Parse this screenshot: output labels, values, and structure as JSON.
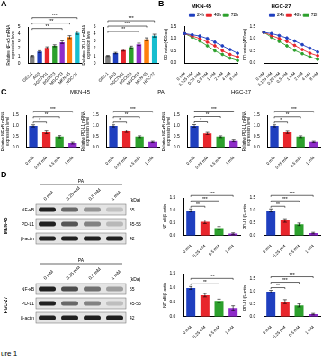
{
  "chart_data": [
    {
      "type": "bar",
      "y_label": "Relative NF-κB mRNA expression level",
      "categories": [
        "GES-1",
        "AGS",
        "SGC7901",
        "BGC823",
        "MGC803",
        "MKN-45",
        "HGC-27"
      ],
      "values": [
        1,
        1.6,
        2.1,
        2.4,
        2.9,
        3.6,
        4.2
      ],
      "errors": [
        0.08,
        0.12,
        0.15,
        0.14,
        0.18,
        0.2,
        0.22
      ],
      "colors": [
        "#7f7f7f",
        "#1f3fbf",
        "#e8262c",
        "#2ca02c",
        "#8e2bc9",
        "#ff7f0e",
        "#17becf"
      ],
      "ylim": [
        0,
        5
      ],
      "yticks": [
        0,
        1,
        2,
        3,
        4,
        5
      ],
      "grid": false,
      "significance": [
        {
          "pair": [
            0,
            4
          ],
          "label": "**"
        },
        {
          "pair": [
            0,
            5
          ],
          "label": "***"
        },
        {
          "pair": [
            0,
            6
          ],
          "label": "***"
        }
      ]
    },
    {
      "type": "bar",
      "y_label": "Relative PD-L1 mRNA expression level",
      "categories": [
        "GES-1",
        "AGS",
        "SGC7901",
        "BGC823",
        "MGC803",
        "MKN-45",
        "HGC-27"
      ],
      "values": [
        1,
        1.4,
        1.8,
        2.2,
        2.6,
        3.3,
        3.8
      ],
      "errors": [
        0.07,
        0.1,
        0.13,
        0.15,
        0.16,
        0.2,
        0.2
      ],
      "colors": [
        "#7f7f7f",
        "#1f3fbf",
        "#e8262c",
        "#2ca02c",
        "#8e2bc9",
        "#ff7f0e",
        "#17becf"
      ],
      "ylim": [
        0,
        5
      ],
      "yticks": [
        0,
        1,
        2,
        3,
        4,
        5
      ],
      "grid": false,
      "significance": [
        {
          "pair": [
            0,
            4
          ],
          "label": "**"
        },
        {
          "pair": [
            0,
            5
          ],
          "label": "***"
        },
        {
          "pair": [
            0,
            6
          ],
          "label": "***"
        }
      ]
    },
    {
      "type": "line",
      "title": "MKN-45",
      "y_label": "OD value(450nm)",
      "categories": [
        "0 mM",
        "0.125 mM",
        "0.25 mM",
        "0.5 mM",
        "1 mM",
        "2 mM",
        "4 mM",
        "8 mM"
      ],
      "series": [
        {
          "name": "24h",
          "color": "#1f3fbf",
          "values": [
            1.2,
            1.15,
            1.1,
            1.0,
            0.85,
            0.7,
            0.55,
            0.4
          ]
        },
        {
          "name": "48h",
          "color": "#e8262c",
          "values": [
            1.2,
            1.1,
            1.0,
            0.85,
            0.7,
            0.5,
            0.35,
            0.25
          ]
        },
        {
          "name": "72h",
          "color": "#2ca02c",
          "values": [
            1.2,
            1.05,
            0.9,
            0.7,
            0.5,
            0.35,
            0.2,
            0.1
          ]
        }
      ],
      "ylim": [
        0,
        1.5
      ],
      "yticks": [
        {
          "value": 0,
          "label": "0.0"
        },
        0.5,
        {
          "value": 1,
          "label": "1.0"
        },
        1.5
      ],
      "grid": false,
      "legend": "upper right",
      "marker": "circle"
    },
    {
      "type": "line",
      "title": "HGC-27",
      "y_label": "OD value(450nm)",
      "categories": [
        "0 mM",
        "0.125 mM",
        "0.25 mM",
        "0.5 mM",
        "1 mM",
        "2 mM",
        "4 mM",
        "8 mM"
      ],
      "series": [
        {
          "name": "24h",
          "color": "#1f3fbf",
          "values": [
            1.25,
            1.2,
            1.12,
            1.02,
            0.9,
            0.75,
            0.6,
            0.45
          ]
        },
        {
          "name": "48h",
          "color": "#e8262c",
          "values": [
            1.25,
            1.12,
            1.0,
            0.88,
            0.72,
            0.55,
            0.4,
            0.3
          ]
        },
        {
          "name": "72h",
          "color": "#2ca02c",
          "values": [
            1.25,
            1.05,
            0.88,
            0.7,
            0.52,
            0.38,
            0.25,
            0.15
          ]
        }
      ],
      "ylim": [
        0,
        1.5
      ],
      "yticks": [
        {
          "value": 0,
          "label": "0.0"
        },
        0.5,
        {
          "value": 1,
          "label": "1.0"
        },
        1.5
      ],
      "grid": false,
      "legend": "upper right",
      "marker": "circle"
    },
    {
      "type": "bar",
      "y_label": "Relative NF-κB mRNA expression level",
      "categories": [
        "0 mM",
        "0.25 mM",
        "0.5 mM",
        "1 mM"
      ],
      "values": [
        1,
        0.7,
        0.5,
        0.2
      ],
      "errors": [
        0.05,
        0.06,
        0.05,
        0.04
      ],
      "colors": [
        "#1f3fbf",
        "#e8262c",
        "#2ca02c",
        "#8e2bc9"
      ],
      "ylim": [
        0,
        1.5
      ],
      "yticks": [
        {
          "value": 0,
          "label": "0.0"
        },
        0.5,
        {
          "value": 1,
          "label": "1.0"
        },
        1.5
      ],
      "grid": false,
      "significance": [
        {
          "pair": [
            0,
            1
          ],
          "label": "*"
        },
        {
          "pair": [
            0,
            2
          ],
          "label": "**"
        },
        {
          "pair": [
            0,
            3
          ],
          "label": "***"
        }
      ]
    },
    {
      "type": "bar",
      "y_label": "Relative PD-L1 mRNA expression level",
      "categories": [
        "0 mM",
        "0.25 mM",
        "0.5 mM",
        "1 mM"
      ],
      "values": [
        1,
        0.75,
        0.5,
        0.25
      ],
      "errors": [
        0.05,
        0.05,
        0.04,
        0.03
      ],
      "colors": [
        "#1f3fbf",
        "#e8262c",
        "#2ca02c",
        "#8e2bc9"
      ],
      "ylim": [
        0,
        1.5
      ],
      "yticks": [
        {
          "value": 0,
          "label": "0.0"
        },
        0.5,
        {
          "value": 1,
          "label": "1.0"
        },
        1.5
      ],
      "grid": false,
      "significance": [
        {
          "pair": [
            0,
            1
          ],
          "label": "*"
        },
        {
          "pair": [
            0,
            2
          ],
          "label": "**"
        },
        {
          "pair": [
            0,
            3
          ],
          "label": "***"
        }
      ]
    },
    {
      "type": "bar",
      "y_label": "Relative NF-κB mRNA expression level",
      "categories": [
        "0 mM",
        "0.25 mM",
        "0.5 mM",
        "1 mM"
      ],
      "values": [
        1,
        0.65,
        0.5,
        0.3
      ],
      "errors": [
        0.06,
        0.05,
        0.04,
        0.04
      ],
      "colors": [
        "#1f3fbf",
        "#e8262c",
        "#2ca02c",
        "#8e2bc9"
      ],
      "ylim": [
        0,
        1.5
      ],
      "yticks": [
        {
          "value": 0,
          "label": "0.0"
        },
        0.5,
        {
          "value": 1,
          "label": "1.0"
        },
        1.5
      ],
      "grid": false,
      "significance": [
        {
          "pair": [
            0,
            1
          ],
          "label": "*"
        },
        {
          "pair": [
            0,
            2
          ],
          "label": "**"
        },
        {
          "pair": [
            0,
            3
          ],
          "label": "***"
        }
      ]
    },
    {
      "type": "bar",
      "y_label": "Relative PD-L1 mRNA expression level",
      "categories": [
        "0 mM",
        "0.25 mM",
        "0.5 mM",
        "1 mM"
      ],
      "values": [
        1,
        0.7,
        0.5,
        0.25
      ],
      "errors": [
        0.05,
        0.05,
        0.04,
        0.03
      ],
      "colors": [
        "#1f3fbf",
        "#e8262c",
        "#2ca02c",
        "#8e2bc9"
      ],
      "ylim": [
        0,
        1.5
      ],
      "yticks": [
        {
          "value": 0,
          "label": "0.0"
        },
        0.5,
        {
          "value": 1,
          "label": "1.0"
        },
        1.5
      ],
      "grid": false,
      "significance": [
        {
          "pair": [
            0,
            1
          ],
          "label": "*"
        },
        {
          "pair": [
            0,
            2
          ],
          "label": "**"
        },
        {
          "pair": [
            0,
            3
          ],
          "label": "***"
        }
      ]
    },
    {
      "type": "bar",
      "y_label": "NF-κB/β-actin",
      "categories": [
        "0 mM",
        "0.25 mM",
        "0.5 mM",
        "1 mM"
      ],
      "values": [
        1,
        0.55,
        0.3,
        0.08
      ],
      "errors": [
        0.06,
        0.07,
        0.06,
        0.03
      ],
      "colors": [
        "#1f3fbf",
        "#e8262c",
        "#2ca02c",
        "#8e2bc9"
      ],
      "ylim": [
        0,
        1.5
      ],
      "yticks": [
        {
          "value": 0,
          "label": "0.0"
        },
        0.5,
        {
          "value": 1,
          "label": "1.0"
        },
        1.5
      ],
      "grid": false,
      "significance": [
        {
          "pair": [
            0,
            1
          ],
          "label": "**"
        },
        {
          "pair": [
            0,
            2
          ],
          "label": "***"
        },
        {
          "pair": [
            0,
            3
          ],
          "label": "***"
        }
      ]
    },
    {
      "type": "bar",
      "y_label": "PD-L1/β-actin",
      "categories": [
        "0 mM",
        "0.25 mM",
        "0.5 mM",
        "1 mM"
      ],
      "values": [
        1,
        0.6,
        0.45,
        0.1
      ],
      "errors": [
        0.06,
        0.07,
        0.05,
        0.03
      ],
      "colors": [
        "#1f3fbf",
        "#e8262c",
        "#2ca02c",
        "#8e2bc9"
      ],
      "ylim": [
        0,
        1.5
      ],
      "yticks": [
        {
          "value": 0,
          "label": "0.0"
        },
        0.5,
        {
          "value": 1,
          "label": "1.0"
        },
        1.5
      ],
      "grid": false,
      "significance": [
        {
          "pair": [
            0,
            1
          ],
          "label": "**"
        },
        {
          "pair": [
            0,
            2
          ],
          "label": "***"
        },
        {
          "pair": [
            0,
            3
          ],
          "label": "***"
        }
      ]
    },
    {
      "type": "bar",
      "y_label": "NF-κB/β-actin",
      "categories": [
        "0 mM",
        "0.25 mM",
        "0.5 mM",
        "1 mM"
      ],
      "values": [
        1,
        0.75,
        0.55,
        0.3
      ],
      "errors": [
        0.05,
        0.06,
        0.06,
        0.08
      ],
      "colors": [
        "#1f3fbf",
        "#e8262c",
        "#2ca02c",
        "#8e2bc9"
      ],
      "ylim": [
        0,
        1.5
      ],
      "yticks": [
        {
          "value": 0,
          "label": "0.0"
        },
        0.5,
        {
          "value": 1,
          "label": "1.0"
        },
        1.5
      ],
      "grid": false,
      "significance": [
        {
          "pair": [
            0,
            2
          ],
          "label": "**"
        },
        {
          "pair": [
            0,
            3
          ],
          "label": "***"
        }
      ]
    },
    {
      "type": "bar",
      "y_label": "PD-L1/β-actin",
      "categories": [
        "0 mM",
        "0.25 mM",
        "0.5 mM",
        "1 mM"
      ],
      "values": [
        1,
        0.6,
        0.45,
        0.1
      ],
      "errors": [
        0.05,
        0.08,
        0.06,
        0.03
      ],
      "colors": [
        "#1f3fbf",
        "#e8262c",
        "#2ca02c",
        "#8e2bc9"
      ],
      "ylim": [
        0,
        1.5
      ],
      "yticks": [
        {
          "value": 0,
          "label": "0.0"
        },
        0.5,
        {
          "value": 1,
          "label": "1.0"
        },
        1.5
      ],
      "grid": false,
      "significance": [
        {
          "pair": [
            0,
            1
          ],
          "label": "**"
        },
        {
          "pair": [
            0,
            2
          ],
          "label": "***"
        },
        {
          "pair": [
            0,
            3
          ],
          "label": "***"
        }
      ]
    }
  ],
  "figure": {
    "panel_labels": [
      "A",
      "B",
      "C",
      "D"
    ],
    "c_header": {
      "treatment": "PA",
      "groups": [
        "MKN-45",
        "HGC-27"
      ]
    },
    "blots": [
      {
        "cell_line": "MKN-45",
        "treatment": "PA",
        "lanes": [
          "0 mM",
          "0.25 mM",
          "0.5 mM",
          "1 mM"
        ],
        "unit": "(kDa)",
        "rows": [
          {
            "protein": "NF-κB",
            "kda": "65",
            "intensity": [
              1,
              0.6,
              0.35,
              0.1
            ]
          },
          {
            "protein": "PD-L1",
            "kda": "45-55",
            "intensity": [
              1,
              0.7,
              0.45,
              0.15
            ]
          },
          {
            "protein": "β-actin",
            "kda": "42",
            "intensity": [
              1,
              1,
              1,
              1
            ]
          }
        ]
      },
      {
        "cell_line": "HGC-27",
        "treatment": "PA",
        "lanes": [
          "0 mM",
          "0.25 mM",
          "0.5 mM",
          "1 mM"
        ],
        "unit": "(kDa)",
        "rows": [
          {
            "protein": "NF-κB",
            "kda": "65",
            "intensity": [
              1,
              0.75,
              0.55,
              0.3
            ]
          },
          {
            "protein": "PD-L1",
            "kda": "45-55",
            "intensity": [
              1,
              0.6,
              0.45,
              0.12
            ]
          },
          {
            "protein": "β-actin",
            "kda": "42",
            "intensity": [
              1,
              1,
              1,
              1
            ]
          }
        ]
      }
    ],
    "caption": "ure 1"
  }
}
